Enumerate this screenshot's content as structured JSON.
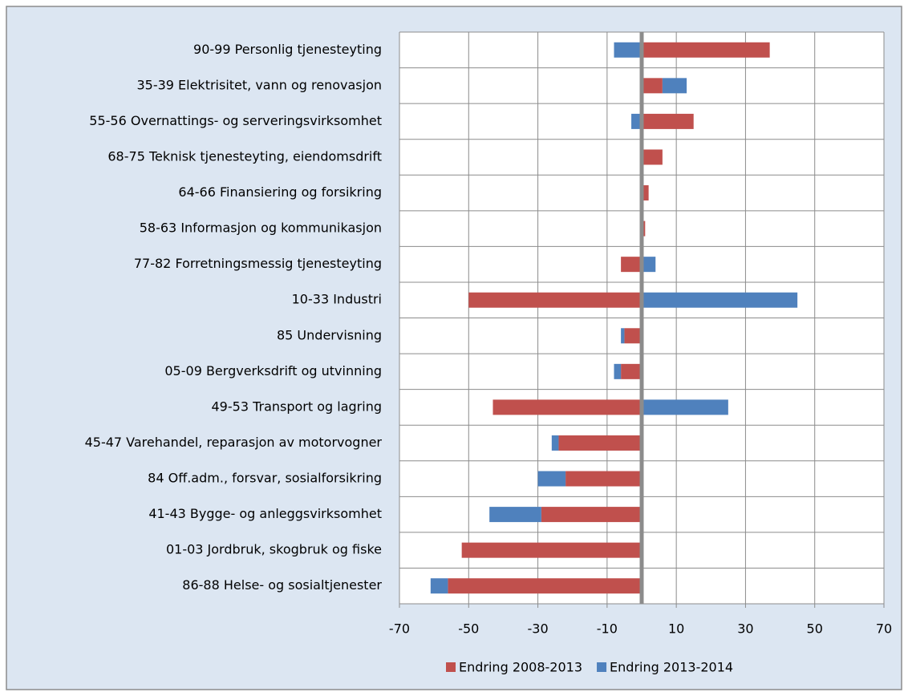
{
  "chart_data": {
    "type": "bar",
    "orientation": "horizontal",
    "stacked": true,
    "categories": [
      "90-99 Personlig tjenesteyting",
      "35-39 Elektrisitet, vann og renovasjon",
      "55-56 Overnattings- og serveringsvirksomhet",
      "68-75 Teknisk tjenesteyting, eiendomsdrift",
      "64-66 Finansiering og forsikring",
      "58-63 Informasjon og kommunikasjon",
      "77-82 Forretningsmessig tjenesteyting",
      "10-33 Industri",
      "85 Undervisning",
      "05-09 Bergverksdrift og utvinning",
      "49-53 Transport og lagring",
      "45-47 Varehandel, reparasjon av motorvogner",
      "84 Off.adm., forsvar, sosialforsikring",
      "41-43 Bygge- og anleggsvirksomhet",
      "01-03 Jordbruk, skogbruk og fiske",
      "86-88 Helse- og sosialtjenester"
    ],
    "series": [
      {
        "name": "Endring 2008-2013",
        "color": "#c0504d",
        "values": [
          37,
          6,
          15,
          6,
          2,
          1,
          -6,
          -50,
          -5,
          -6,
          -43,
          -24,
          -22,
          -29,
          -52,
          -56
        ]
      },
      {
        "name": "Endring 2013-2014",
        "color": "#4f81bd",
        "values": [
          -8,
          7,
          -3,
          -0.5,
          0,
          0,
          4,
          45,
          -1,
          -2,
          25,
          -2,
          -8,
          -15,
          0,
          -5
        ]
      }
    ],
    "xlim": [
      -70,
      70
    ],
    "xticks": [
      -70,
      -50,
      -30,
      -10,
      10,
      30,
      50,
      70
    ],
    "grid": true,
    "legend": "bottom"
  }
}
